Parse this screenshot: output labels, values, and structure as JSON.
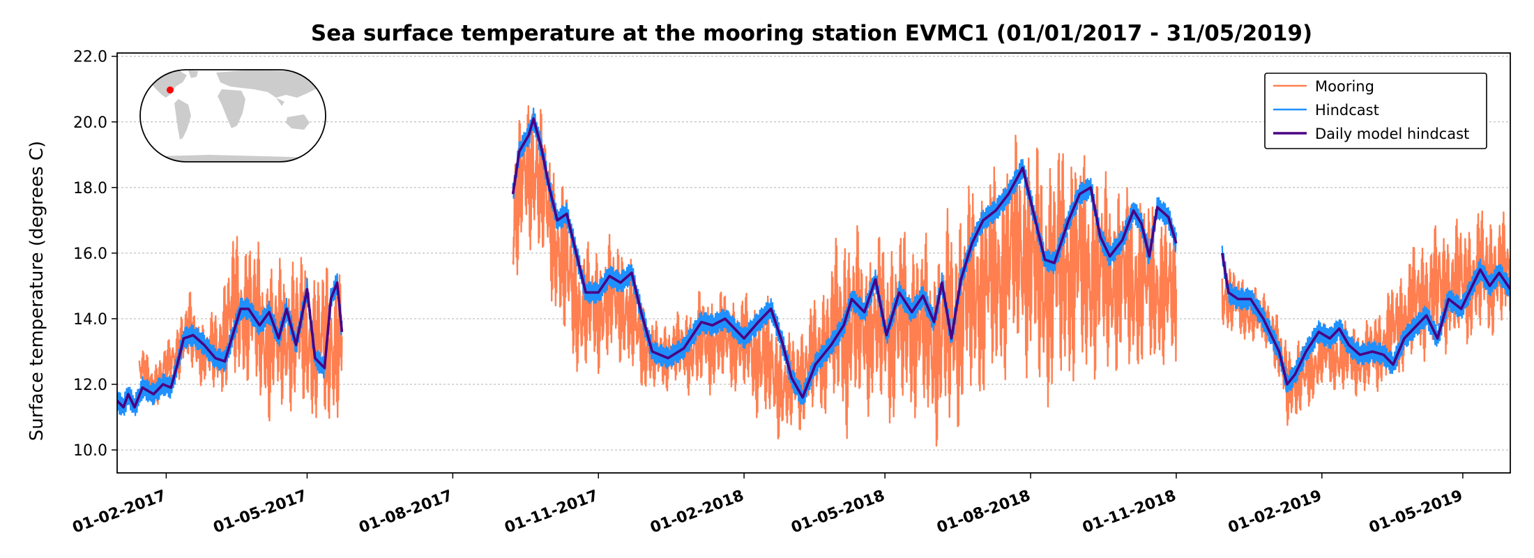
{
  "chart_data": {
    "type": "line",
    "title": "Sea surface temperature at the mooring station EVMC1 (01/01/2017 - 31/05/2019)",
    "xlabel": "",
    "ylabel": "Surface temperature (degrees C)",
    "xlim": [
      "2017-01-01",
      "2019-05-31"
    ],
    "ylim": [
      9.3,
      22.1
    ],
    "yticks": [
      10.0,
      12.0,
      14.0,
      16.0,
      18.0,
      20.0,
      22.0
    ],
    "ytick_labels": [
      "10.0",
      "12.0",
      "14.0",
      "16.0",
      "18.0",
      "20.0",
      "22.0"
    ],
    "xticks": [
      "2017-02-01",
      "2017-05-01",
      "2017-08-01",
      "2017-11-01",
      "2018-02-01",
      "2018-05-01",
      "2018-08-01",
      "2018-11-01",
      "2019-02-01",
      "2019-05-01"
    ],
    "xtick_labels": [
      "01-02-2017",
      "01-05-2017",
      "01-08-2017",
      "01-11-2017",
      "01-02-2018",
      "01-05-2018",
      "01-08-2018",
      "01-11-2018",
      "01-02-2019",
      "01-05-2019"
    ],
    "grid": "horizontal dotted",
    "legend_position": "top-right",
    "inset": "world map with station marker",
    "series": [
      {
        "name": "Mooring",
        "color": "#FF7F50",
        "style": "high-frequency band",
        "segments": [
          {
            "band": [
              [
                "2017-01-15",
                11.8,
                13.2
              ],
              [
                "2017-01-25",
                11.2,
                12.8
              ],
              [
                "2017-02-05",
                12.0,
                13.6
              ],
              [
                "2017-02-15",
                12.3,
                15.0
              ],
              [
                "2017-02-25",
                11.8,
                14.0
              ],
              [
                "2017-03-05",
                11.5,
                14.5
              ],
              [
                "2017-03-15",
                11.6,
                16.8
              ],
              [
                "2017-03-25",
                11.8,
                16.9
              ],
              [
                "2017-04-05",
                10.6,
                16.2
              ],
              [
                "2017-04-15",
                10.8,
                16.0
              ],
              [
                "2017-04-25",
                11.0,
                16.4
              ],
              [
                "2017-05-05",
                10.6,
                15.8
              ],
              [
                "2017-05-15",
                10.2,
                16.1
              ],
              [
                "2017-05-23",
                11.0,
                15.8
              ]
            ]
          },
          {
            "band": [
              [
                "2017-09-08",
                14.2,
                19.6
              ],
              [
                "2017-09-15",
                15.8,
                20.8
              ],
              [
                "2017-09-22",
                16.0,
                21.5
              ],
              [
                "2017-10-01",
                14.5,
                19.5
              ],
              [
                "2017-10-10",
                13.0,
                18.5
              ],
              [
                "2017-10-20",
                12.0,
                16.5
              ],
              [
                "2017-11-01",
                12.2,
                16.5
              ],
              [
                "2017-11-15",
                12.5,
                16.8
              ],
              [
                "2017-11-25",
                11.8,
                15.5
              ],
              [
                "2017-12-05",
                11.6,
                14.0
              ],
              [
                "2017-12-20",
                11.8,
                14.2
              ],
              [
                "2018-01-05",
                11.5,
                15.0
              ],
              [
                "2018-01-20",
                11.8,
                15.0
              ],
              [
                "2018-02-01",
                11.5,
                14.9
              ],
              [
                "2018-02-15",
                10.5,
                14.8
              ],
              [
                "2018-02-28",
                10.1,
                13.5
              ],
              [
                "2018-03-15",
                10.7,
                14.5
              ],
              [
                "2018-03-28",
                11.0,
                16.0
              ],
              [
                "2018-04-05",
                10.2,
                17.5
              ],
              [
                "2018-04-20",
                11.0,
                16.5
              ],
              [
                "2018-05-05",
                10.5,
                17.0
              ],
              [
                "2018-05-20",
                10.8,
                17.0
              ],
              [
                "2018-06-01",
                10.0,
                16.5
              ],
              [
                "2018-06-10",
                9.9,
                17.5
              ],
              [
                "2018-06-25",
                11.0,
                18.5
              ],
              [
                "2018-07-10",
                11.5,
                19.0
              ],
              [
                "2018-07-25",
                12.5,
                20.0
              ],
              [
                "2018-08-10",
                10.8,
                19.5
              ],
              [
                "2018-08-25",
                11.5,
                20.0
              ],
              [
                "2018-09-10",
                11.8,
                19.0
              ],
              [
                "2018-09-25",
                12.0,
                18.5
              ],
              [
                "2018-10-10",
                12.0,
                18.2
              ],
              [
                "2018-10-20",
                12.2,
                17.8
              ],
              [
                "2018-11-01",
                12.2,
                17.0
              ]
            ]
          },
          {
            "band": [
              [
                "2018-11-30",
                13.5,
                16.0
              ],
              [
                "2018-12-15",
                13.2,
                15.3
              ],
              [
                "2018-12-30",
                13.0,
                14.8
              ],
              [
                "2019-01-10",
                10.6,
                13.5
              ],
              [
                "2019-01-20",
                10.8,
                13.5
              ],
              [
                "2019-02-01",
                11.8,
                14.0
              ],
              [
                "2019-02-15",
                11.6,
                14.0
              ],
              [
                "2019-03-01",
                11.5,
                14.0
              ],
              [
                "2019-03-15",
                11.8,
                15.0
              ],
              [
                "2019-04-01",
                12.5,
                16.5
              ],
              [
                "2019-04-15",
                12.8,
                17.0
              ],
              [
                "2019-05-01",
                13.0,
                17.2
              ],
              [
                "2019-05-15",
                13.2,
                17.6
              ],
              [
                "2019-05-31",
                13.5,
                17.2
              ]
            ]
          }
        ]
      },
      {
        "name": "Hindcast",
        "color": "#1E90FF",
        "style": "band around daily hindcast",
        "half_width": 0.35
      },
      {
        "name": "Daily model hindcast",
        "color": "#4B0082",
        "style": "line",
        "segments": [
          [
            [
              "2017-01-01",
              11.5
            ],
            [
              "2017-01-05",
              11.3
            ],
            [
              "2017-01-08",
              11.7
            ],
            [
              "2017-01-12",
              11.3
            ],
            [
              "2017-01-17",
              11.9
            ],
            [
              "2017-01-24",
              11.7
            ],
            [
              "2017-01-30",
              12.0
            ],
            [
              "2017-02-04",
              11.9
            ],
            [
              "2017-02-08",
              12.6
            ],
            [
              "2017-02-12",
              13.4
            ],
            [
              "2017-02-18",
              13.5
            ],
            [
              "2017-02-25",
              13.2
            ],
            [
              "2017-03-04",
              12.8
            ],
            [
              "2017-03-10",
              12.7
            ],
            [
              "2017-03-15",
              13.5
            ],
            [
              "2017-03-20",
              14.3
            ],
            [
              "2017-03-25",
              14.3
            ],
            [
              "2017-04-01",
              13.8
            ],
            [
              "2017-04-07",
              14.2
            ],
            [
              "2017-04-13",
              13.4
            ],
            [
              "2017-04-18",
              14.3
            ],
            [
              "2017-04-24",
              13.2
            ],
            [
              "2017-05-01",
              14.9
            ],
            [
              "2017-05-06",
              12.8
            ],
            [
              "2017-05-12",
              12.5
            ],
            [
              "2017-05-16",
              14.6
            ],
            [
              "2017-05-20",
              15.1
            ],
            [
              "2017-05-23",
              13.6
            ]
          ],
          [
            [
              "2017-09-08",
              17.8
            ],
            [
              "2017-09-12",
              19.1
            ],
            [
              "2017-09-18",
              19.6
            ],
            [
              "2017-09-21",
              20.1
            ],
            [
              "2017-09-26",
              19.2
            ],
            [
              "2017-10-01",
              18.0
            ],
            [
              "2017-10-06",
              17.0
            ],
            [
              "2017-10-12",
              17.2
            ],
            [
              "2017-10-18",
              16.0
            ],
            [
              "2017-10-24",
              14.8
            ],
            [
              "2017-11-01",
              14.8
            ],
            [
              "2017-11-08",
              15.3
            ],
            [
              "2017-11-15",
              15.1
            ],
            [
              "2017-11-22",
              15.4
            ],
            [
              "2017-11-28",
              14.2
            ],
            [
              "2017-12-05",
              13.0
            ],
            [
              "2017-12-15",
              12.8
            ],
            [
              "2017-12-25",
              13.1
            ],
            [
              "2018-01-05",
              13.9
            ],
            [
              "2018-01-12",
              13.8
            ],
            [
              "2018-01-20",
              14.0
            ],
            [
              "2018-02-01",
              13.4
            ],
            [
              "2018-02-10",
              13.9
            ],
            [
              "2018-02-18",
              14.3
            ],
            [
              "2018-02-25",
              13.3
            ],
            [
              "2018-03-03",
              12.2
            ],
            [
              "2018-03-10",
              11.6
            ],
            [
              "2018-03-18",
              12.6
            ],
            [
              "2018-03-28",
              13.2
            ],
            [
              "2018-04-05",
              13.8
            ],
            [
              "2018-04-10",
              14.6
            ],
            [
              "2018-04-18",
              14.2
            ],
            [
              "2018-04-25",
              15.2
            ],
            [
              "2018-05-02",
              13.5
            ],
            [
              "2018-05-10",
              14.8
            ],
            [
              "2018-05-18",
              14.2
            ],
            [
              "2018-05-25",
              14.7
            ],
            [
              "2018-06-01",
              13.9
            ],
            [
              "2018-06-06",
              15.1
            ],
            [
              "2018-06-12",
              13.4
            ],
            [
              "2018-06-18",
              15.2
            ],
            [
              "2018-06-25",
              16.3
            ],
            [
              "2018-07-02",
              17.0
            ],
            [
              "2018-07-10",
              17.3
            ],
            [
              "2018-07-18",
              17.8
            ],
            [
              "2018-07-27",
              18.6
            ],
            [
              "2018-08-03",
              17.2
            ],
            [
              "2018-08-10",
              15.8
            ],
            [
              "2018-08-16",
              15.7
            ],
            [
              "2018-08-25",
              17.0
            ],
            [
              "2018-09-01",
              17.8
            ],
            [
              "2018-09-08",
              18.0
            ],
            [
              "2018-09-14",
              16.5
            ],
            [
              "2018-09-20",
              15.9
            ],
            [
              "2018-09-28",
              16.4
            ],
            [
              "2018-10-05",
              17.3
            ],
            [
              "2018-10-10",
              16.9
            ],
            [
              "2018-10-15",
              15.9
            ],
            [
              "2018-10-20",
              17.4
            ],
            [
              "2018-10-27",
              17.1
            ],
            [
              "2018-11-01",
              16.3
            ]
          ],
          [
            [
              "2018-11-30",
              16.0
            ],
            [
              "2018-12-04",
              14.8
            ],
            [
              "2018-12-10",
              14.6
            ],
            [
              "2018-12-18",
              14.6
            ],
            [
              "2018-12-26",
              14.0
            ],
            [
              "2019-01-05",
              13.0
            ],
            [
              "2019-01-10",
              12.0
            ],
            [
              "2019-01-15",
              12.3
            ],
            [
              "2019-01-22",
              13.0
            ],
            [
              "2019-01-30",
              13.6
            ],
            [
              "2019-02-06",
              13.4
            ],
            [
              "2019-02-12",
              13.7
            ],
            [
              "2019-02-18",
              13.2
            ],
            [
              "2019-02-25",
              12.9
            ],
            [
              "2019-03-05",
              13.0
            ],
            [
              "2019-03-12",
              12.9
            ],
            [
              "2019-03-18",
              12.6
            ],
            [
              "2019-03-25",
              13.4
            ],
            [
              "2019-04-02",
              13.8
            ],
            [
              "2019-04-08",
              14.1
            ],
            [
              "2019-04-15",
              13.4
            ],
            [
              "2019-04-22",
              14.6
            ],
            [
              "2019-04-30",
              14.3
            ],
            [
              "2019-05-06",
              14.9
            ],
            [
              "2019-05-12",
              15.5
            ],
            [
              "2019-05-18",
              15.0
            ],
            [
              "2019-05-24",
              15.4
            ],
            [
              "2019-05-31",
              14.9
            ]
          ]
        ]
      }
    ]
  },
  "colors": {
    "mooring": "#FF7F50",
    "hindcast": "#1E90FF",
    "daily": "#4B0082",
    "map_land": "#cccccc",
    "station_marker": "#ff0000"
  }
}
